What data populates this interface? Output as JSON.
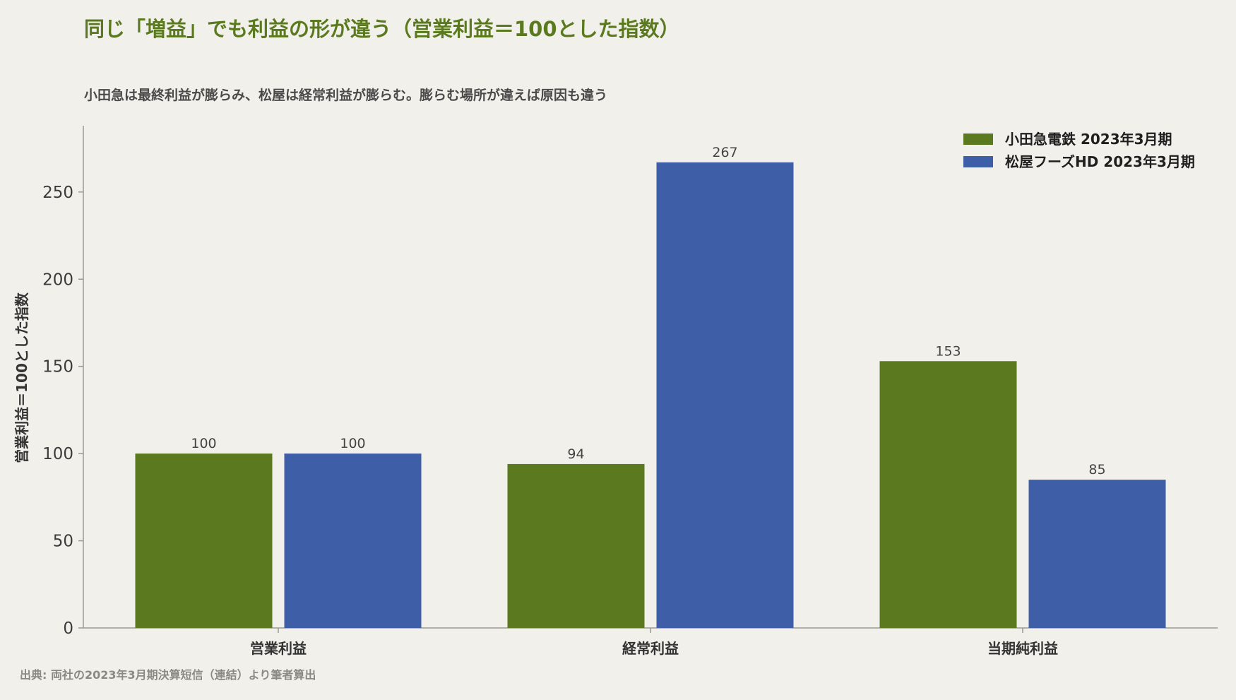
{
  "chart_data": {
    "type": "bar",
    "title": "同じ「増益」でも利益の形が違う（営業利益＝100とした指数）",
    "subtitle": "小田急は最終利益が膨らみ、松屋は経常利益が膨らむ。膨らむ場所が違えば原因も違う",
    "xlabel": "",
    "ylabel": "営業利益＝100とした指数",
    "categories": [
      "営業利益",
      "経常利益",
      "当期純利益"
    ],
    "series": [
      {
        "name": "小田急電鉄 2023年3月期",
        "values": [
          100,
          94,
          153
        ],
        "color": "#5b7a1f"
      },
      {
        "name": "松屋フーズHD 2023年3月期",
        "values": [
          100,
          267,
          85
        ],
        "color": "#3e5ea8"
      }
    ],
    "ylim": [
      0,
      288
    ],
    "yticks": [
      0,
      50,
      100,
      150,
      200,
      250
    ],
    "grid": false,
    "legend_position": "top-right",
    "data_labels": true,
    "source": "出典: 両社の2023年3月期決算短信（連結）より筆者算出"
  },
  "colors": {
    "background": "#f2f0ea",
    "title": "#5b7a1f",
    "axis": "#9a9a92"
  }
}
